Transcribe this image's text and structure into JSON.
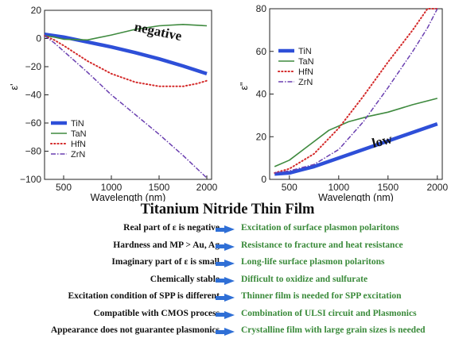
{
  "colors": {
    "TiN": "#2e4fd8",
    "TaN": "#3f8a3f",
    "HfN": "#d42a2a",
    "ZrN": "#6a3fb0",
    "arrow": "#2f6fd6",
    "effect_text": "#3a8a3a"
  },
  "chart_data": [
    {
      "type": "line",
      "title": "",
      "xlabel": "Wavelength (nm)",
      "ylabel": "ε'",
      "xlim": [
        300,
        2050
      ],
      "ylim": [
        -100,
        20
      ],
      "xticks": [
        500,
        1000,
        1500,
        2000
      ],
      "yticks": [
        20,
        0,
        -20,
        -40,
        -60,
        -80,
        -100
      ],
      "grid": false,
      "legend_position": "bottom-left",
      "annotation": "negative",
      "series": [
        {
          "name": "TiN",
          "style": "thick-solid",
          "x": [
            300,
            500,
            750,
            1000,
            1250,
            1500,
            1750,
            2000
          ],
          "y": [
            3,
            1,
            -2.5,
            -6,
            -10,
            -14.5,
            -19.5,
            -25
          ]
        },
        {
          "name": "TaN",
          "style": "solid",
          "x": [
            300,
            400,
            500,
            750,
            1000,
            1250,
            1500,
            1750,
            2000
          ],
          "y": [
            2,
            1,
            -0.5,
            -1,
            2.5,
            6.5,
            9,
            10,
            9
          ]
        },
        {
          "name": "HfN",
          "style": "dotted",
          "x": [
            300,
            400,
            500,
            750,
            1000,
            1250,
            1500,
            1750,
            1900,
            2000
          ],
          "y": [
            2,
            -1,
            -5,
            -16,
            -25,
            -31,
            -34,
            -34,
            -32,
            -30
          ]
        },
        {
          "name": "ZrN",
          "style": "dashdot",
          "x": [
            300,
            400,
            500,
            750,
            1000,
            1250,
            1500,
            1750,
            2000
          ],
          "y": [
            2,
            -3,
            -9,
            -24,
            -40,
            -54,
            -68,
            -83,
            -99
          ]
        }
      ]
    },
    {
      "type": "line",
      "title": "",
      "xlabel": "Wavelength (nm)",
      "ylabel": "ε\"",
      "xlim": [
        300,
        2050
      ],
      "ylim": [
        0,
        80
      ],
      "xticks": [
        500,
        1000,
        1500,
        2000
      ],
      "yticks": [
        0,
        20,
        40,
        60,
        80
      ],
      "grid": false,
      "legend_position": "top-left",
      "annotation": "low",
      "series": [
        {
          "name": "TiN",
          "style": "thick-solid",
          "x": [
            350,
            500,
            750,
            1000,
            1250,
            1500,
            1750,
            2000
          ],
          "y": [
            2.5,
            3,
            6,
            10,
            14,
            18,
            22,
            26
          ]
        },
        {
          "name": "TaN",
          "style": "solid",
          "x": [
            350,
            500,
            700,
            900,
            1100,
            1300,
            1500,
            1750,
            2000
          ],
          "y": [
            6,
            9,
            16,
            23,
            27,
            29.5,
            31.5,
            35,
            38
          ]
        },
        {
          "name": "HfN",
          "style": "dotted",
          "x": [
            350,
            500,
            750,
            1000,
            1250,
            1500,
            1750,
            1900,
            2000
          ],
          "y": [
            3,
            5,
            12,
            24,
            39,
            55,
            70,
            80,
            80
          ]
        },
        {
          "name": "ZrN",
          "style": "dashdot",
          "x": [
            350,
            500,
            750,
            1000,
            1250,
            1500,
            1750,
            1900,
            2000
          ],
          "y": [
            3,
            4,
            7,
            14,
            27,
            43,
            60,
            71,
            80
          ]
        }
      ]
    }
  ],
  "section": {
    "title": "Titanium Nitride Thin Film",
    "rows": [
      {
        "property": "Real part of ε is negative",
        "effect": "Excitation of surface plasmon polaritons"
      },
      {
        "property": "Hardness and MP > Au, Ag",
        "effect": "Resistance to fracture and heat resistance"
      },
      {
        "property": "Imaginary part of ε is small",
        "effect": "Long-life surface plasmon polaritons"
      },
      {
        "property": "Chemically stable",
        "effect": "Difficult to oxidize and sulfurate"
      },
      {
        "property": "Excitation condition of SPP is different",
        "effect": "Thinner film is needed for SPP excitation"
      },
      {
        "property": "Compatible with CMOS process",
        "effect": "Combination of ULSI circuit and Plasmonics"
      },
      {
        "property": "Appearance does not guarantee plasmonics",
        "effect": "Crystalline film with large grain sizes is needed"
      }
    ]
  }
}
